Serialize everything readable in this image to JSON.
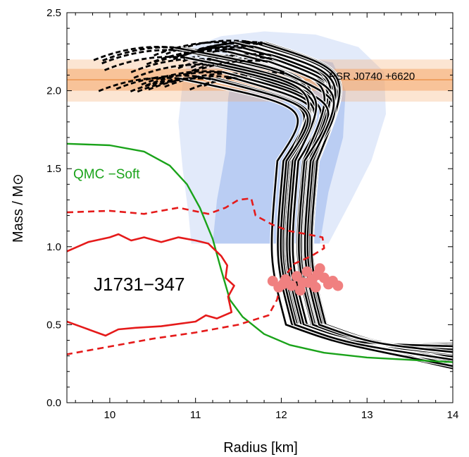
{
  "chart_data": {
    "type": "line",
    "xlabel": "Radius  [km]",
    "ylabel": "Mass / M⊙",
    "xlim": [
      9.5,
      14
    ],
    "ylim": [
      0,
      2.5
    ],
    "x_ticks": [
      "10",
      "11",
      "12",
      "13",
      "14"
    ],
    "y_ticks": [
      "0.0",
      "0.5",
      "1.0",
      "1.5",
      "2.0",
      "2.5"
    ],
    "grid": false,
    "legend": "none",
    "annotations": {
      "pulsar_band": "PSR  J0740 +6620",
      "soft_eos": "QMC −Soft",
      "j1731": "J1731−347"
    },
    "colors": {
      "eos_curves": "#000000",
      "soft_curve": "#1aa31a",
      "j1731_contours": "#e51a1a",
      "pulsar_band": "#f4a86a",
      "blue_region": "#7a9ee8",
      "markers": "#f08080"
    },
    "pulsar_band": {
      "center": 2.07,
      "inner": [
        2.0,
        2.14
      ],
      "outer": [
        1.93,
        2.2
      ]
    },
    "qmc_soft": {
      "name": "QMC −Soft",
      "points": [
        [
          9.5,
          1.66
        ],
        [
          10.0,
          1.65
        ],
        [
          10.4,
          1.61
        ],
        [
          10.7,
          1.52
        ],
        [
          10.9,
          1.4
        ],
        [
          11.05,
          1.25
        ],
        [
          11.2,
          1.05
        ],
        [
          11.3,
          0.85
        ],
        [
          11.4,
          0.66
        ],
        [
          11.55,
          0.55
        ],
        [
          11.8,
          0.44
        ],
        [
          12.1,
          0.37
        ],
        [
          12.5,
          0.32
        ],
        [
          13.0,
          0.29
        ],
        [
          14.0,
          0.26
        ]
      ]
    },
    "eos_family": {
      "curve_count": 30,
      "max_radius_range": [
        9.8,
        11.15
      ],
      "max_mass_range": [
        2.0,
        2.26
      ],
      "transition_radius_range": [
        11.92,
        12.52
      ],
      "tail_mass_at_14km": [
        0.22,
        0.38
      ]
    },
    "j1731_solid": [
      [
        9.5,
        0.97
      ],
      [
        9.75,
        1.03
      ],
      [
        10.0,
        1.06
      ],
      [
        10.1,
        1.08
      ],
      [
        10.25,
        1.04
      ],
      [
        10.4,
        1.06
      ],
      [
        10.6,
        1.03
      ],
      [
        10.8,
        1.06
      ],
      [
        11.0,
        1.04
      ],
      [
        11.15,
        1.02
      ],
      [
        11.3,
        0.94
      ],
      [
        11.37,
        0.88
      ],
      [
        11.35,
        0.8
      ],
      [
        11.45,
        0.75
      ],
      [
        11.38,
        0.68
      ],
      [
        11.42,
        0.58
      ],
      [
        11.25,
        0.54
      ],
      [
        11.12,
        0.56
      ],
      [
        11.0,
        0.52
      ],
      [
        10.6,
        0.49
      ],
      [
        10.3,
        0.48
      ],
      [
        10.1,
        0.47
      ],
      [
        9.95,
        0.43
      ],
      [
        9.7,
        0.48
      ],
      [
        9.5,
        0.52
      ]
    ],
    "j1731_dashed": [
      [
        9.5,
        1.22
      ],
      [
        10.0,
        1.23
      ],
      [
        10.4,
        1.21
      ],
      [
        10.8,
        1.25
      ],
      [
        11.15,
        1.21
      ],
      [
        11.35,
        1.25
      ],
      [
        11.5,
        1.3
      ],
      [
        11.65,
        1.31
      ],
      [
        11.7,
        1.2
      ],
      [
        11.9,
        1.14
      ],
      [
        12.1,
        1.1
      ],
      [
        12.3,
        1.08
      ],
      [
        12.48,
        1.06
      ],
      [
        12.5,
        0.99
      ],
      [
        12.35,
        0.94
      ],
      [
        12.15,
        0.89
      ],
      [
        12.0,
        0.78
      ],
      [
        11.95,
        0.66
      ],
      [
        11.85,
        0.56
      ],
      [
        11.5,
        0.5
      ],
      [
        11.0,
        0.45
      ],
      [
        10.5,
        0.41
      ],
      [
        10.0,
        0.36
      ],
      [
        9.5,
        0.31
      ]
    ],
    "markers": [
      [
        11.9,
        0.78
      ],
      [
        11.97,
        0.74
      ],
      [
        12.05,
        0.79
      ],
      [
        12.12,
        0.75
      ],
      [
        12.18,
        0.81
      ],
      [
        12.25,
        0.77
      ],
      [
        12.3,
        0.84
      ],
      [
        12.36,
        0.79
      ],
      [
        12.4,
        0.74
      ],
      [
        12.45,
        0.86
      ],
      [
        12.5,
        0.8
      ],
      [
        12.55,
        0.76
      ],
      [
        12.6,
        0.78
      ],
      [
        12.66,
        0.75
      ],
      [
        12.22,
        0.72
      ],
      [
        12.02,
        0.76
      ],
      [
        12.42,
        0.82
      ],
      [
        12.32,
        0.77
      ]
    ],
    "blue_outer": [
      [
        10.95,
        2.28
      ],
      [
        11.3,
        2.35
      ],
      [
        11.8,
        2.38
      ],
      [
        12.4,
        2.36
      ],
      [
        12.9,
        2.28
      ],
      [
        13.2,
        2.12
      ],
      [
        13.22,
        1.85
      ],
      [
        13.05,
        1.55
      ],
      [
        12.8,
        1.28
      ],
      [
        12.55,
        1.02
      ],
      [
        10.95,
        1.02
      ],
      [
        10.92,
        1.2
      ],
      [
        10.85,
        1.5
      ],
      [
        10.8,
        1.8
      ],
      [
        10.85,
        2.05
      ]
    ],
    "blue_inner": [
      [
        11.45,
        2.2
      ],
      [
        12.0,
        2.24
      ],
      [
        12.6,
        2.18
      ],
      [
        12.75,
        2.0
      ],
      [
        12.72,
        1.7
      ],
      [
        12.55,
        1.35
      ],
      [
        12.45,
        1.02
      ],
      [
        11.2,
        1.02
      ],
      [
        11.25,
        1.3
      ],
      [
        11.35,
        1.6
      ],
      [
        11.38,
        1.95
      ]
    ]
  }
}
